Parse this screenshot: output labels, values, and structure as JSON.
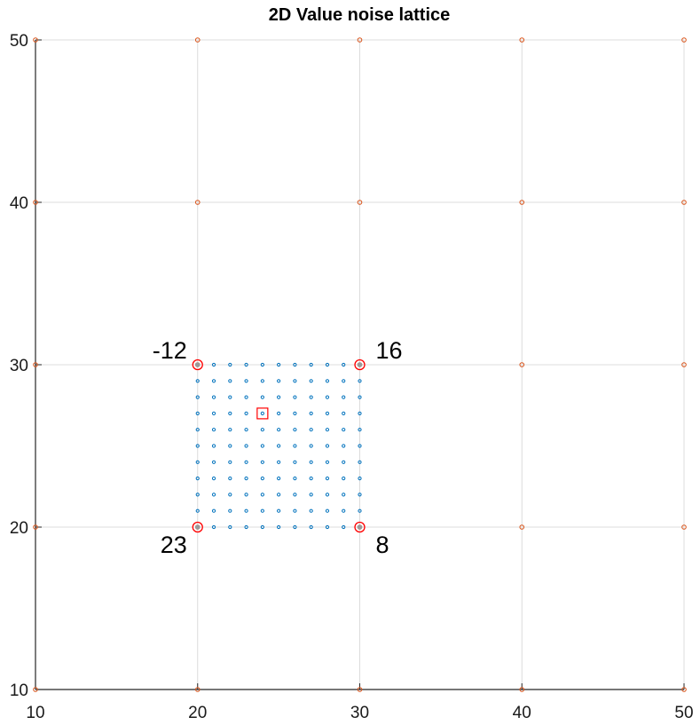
{
  "chart_data": {
    "type": "scatter",
    "title": "2D Value noise lattice",
    "xlabel": "",
    "ylabel": "",
    "xlim": [
      10,
      50
    ],
    "ylim": [
      10,
      50
    ],
    "xticks": [
      10,
      20,
      30,
      40,
      50
    ],
    "yticks": [
      10,
      20,
      30,
      40,
      50
    ],
    "xtick_labels": [
      "10",
      "20",
      "30",
      "40",
      "50"
    ],
    "ytick_labels": [
      "10",
      "20",
      "30",
      "40",
      "50"
    ],
    "grid": true,
    "series": [
      {
        "marker": "circle",
        "color": "#d95319",
        "x": [
          10,
          20,
          30,
          40,
          50,
          10,
          20,
          30,
          40,
          50,
          10,
          20,
          30,
          40,
          50,
          10,
          20,
          30,
          40,
          50,
          10,
          20,
          30,
          40,
          50
        ],
        "y": [
          10,
          10,
          10,
          10,
          10,
          20,
          20,
          20,
          20,
          20,
          30,
          30,
          30,
          30,
          30,
          40,
          40,
          40,
          40,
          40,
          50,
          50,
          50,
          50,
          50
        ]
      },
      {
        "marker": "circle",
        "color": "#0072bd",
        "x_range": [
          20,
          30
        ],
        "y_range": [
          20,
          30
        ],
        "step": 1
      }
    ],
    "highlighted_corners": {
      "color": "#ff0000",
      "points": [
        {
          "x": 20,
          "y": 30,
          "label": "-12"
        },
        {
          "x": 30,
          "y": 30,
          "label": "16"
        },
        {
          "x": 20,
          "y": 20,
          "label": "23"
        },
        {
          "x": 30,
          "y": 20,
          "label": "8"
        }
      ]
    },
    "highlighted_sample": {
      "marker": "square",
      "color": "#ff0000",
      "x": 24,
      "y": 27
    }
  }
}
